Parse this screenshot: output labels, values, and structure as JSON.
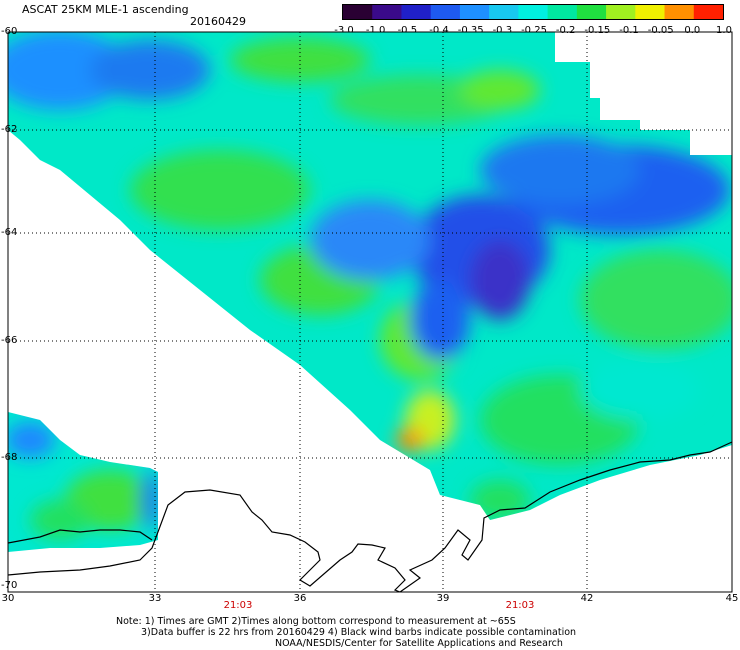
{
  "header": {
    "title": "ASCAT 25KM MLE-1 ascending",
    "date": "20160429"
  },
  "colorbar": {
    "ticks": [
      "-3.0",
      "-1.0",
      "-0.5",
      "-0.4",
      "-0.35",
      "-0.3",
      "-0.25",
      "-0.2",
      "-0.15",
      "-0.1",
      "-0.05",
      "0.0",
      "1.0"
    ],
    "colors": [
      "#2a0033",
      "#3a0a8a",
      "#2020c8",
      "#1e5af0",
      "#1e90ff",
      "#18c8f0",
      "#00f0e0",
      "#00e8a0",
      "#20e040",
      "#a0f020",
      "#f0f000",
      "#ff9000",
      "#ff2000"
    ]
  },
  "axes": {
    "lat_labels": [
      "-60",
      "-62",
      "-64",
      "-66",
      "-68",
      "-70"
    ],
    "lon_labels": [
      "30",
      "33",
      "36",
      "39",
      "42",
      "45"
    ],
    "time_labels": [
      "21:03",
      "21:03"
    ]
  },
  "notes": {
    "line1": "Note: 1) Times are GMT 2)Times along bottom correspond to measurement at ~65S",
    "line2": "3)Data buffer is 22 hrs from 20160429 4) Black wind barbs indicate possible contamination",
    "line3": "NOAA/NESDIS/Center for Satellite Applications and Research"
  },
  "style": {
    "coast_color": "#000000",
    "grid_color": "#000000",
    "time_color": "#cc0000"
  }
}
